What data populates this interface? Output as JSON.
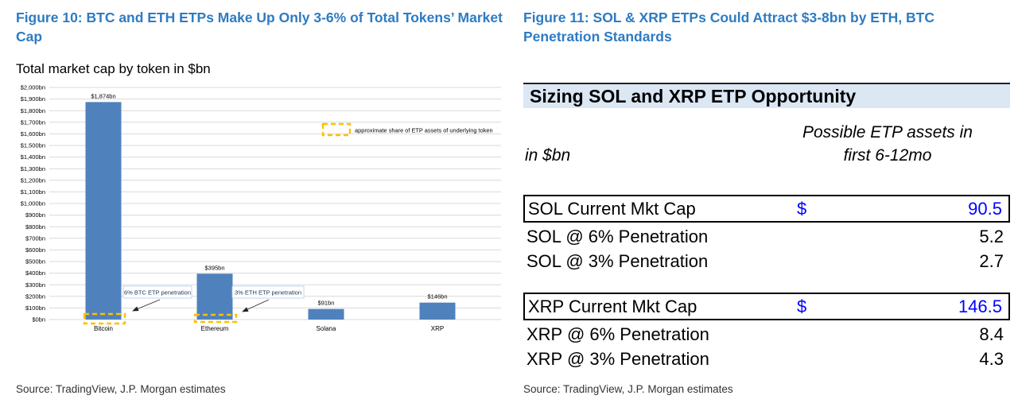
{
  "colors": {
    "accent_blue": "#2E7BC2",
    "bar_blue": "#4F81BD",
    "dashed_gold": "#FFC000",
    "table_value_blue": "#0000FF",
    "header_band_bg": "#DBE7F3",
    "annotation_navy": "#17375D",
    "gridline_gray": "#D9D9D9"
  },
  "figure10": {
    "title": "Figure 10: BTC and ETH ETPs Make Up Only 3-6% of Total Tokens’ Market Cap",
    "subtitle": "Total market cap by token in $bn",
    "source": "Source: TradingView, J.P. Morgan estimates"
  },
  "figure11": {
    "title": "Figure 11: SOL & XRP ETPs Could Attract $3-8bn by ETH, BTC Penetration Standards",
    "source": "Source: TradingView, J.P. Morgan estimates",
    "table": {
      "header": "Sizing SOL and XRP ETP Opportunity",
      "unit_label": "in $bn",
      "value_col_header_line1": "Possible ETP assets in",
      "value_col_header_line2": "first 6-12mo",
      "sol_rows": [
        {
          "label": "SOL Current Mkt Cap",
          "currency": "$",
          "value": "90.5"
        },
        {
          "label": "SOL @ 6% Penetration",
          "value": "5.2"
        },
        {
          "label": "SOL @ 3% Penetration",
          "value": "2.7"
        }
      ],
      "xrp_rows": [
        {
          "label": "XRP Current Mkt Cap",
          "currency": "$",
          "value": "146.5"
        },
        {
          "label": "XRP @ 6% Penetration",
          "value": "8.4"
        },
        {
          "label": "XRP @ 3% Penetration",
          "value": "4.3"
        }
      ]
    }
  },
  "chart_data": {
    "type": "bar",
    "title": "Total market cap by token in $bn",
    "categories": [
      "Bitcoin",
      "Ethereum",
      "Solana",
      "XRP"
    ],
    "values": [
      1874,
      395,
      91,
      146
    ],
    "bar_labels": [
      "$1,874bn",
      "$395bn",
      "$91bn",
      "$146bn"
    ],
    "ylim": [
      0,
      2000
    ],
    "ytick_step": 100,
    "ytick_format": "$#,##0bn",
    "grid": true,
    "legend": {
      "position": "top-right",
      "label": "approximate share of ETP assets of underlying token"
    },
    "annotations": [
      {
        "text": "6% BTC ETP penetration",
        "target_category": "Bitcoin"
      },
      {
        "text": "3% ETH ETP penetration",
        "target_category": "Ethereum"
      }
    ],
    "overlays": [
      {
        "target_category": "Bitcoin"
      },
      {
        "target_category": "Ethereum"
      }
    ]
  }
}
